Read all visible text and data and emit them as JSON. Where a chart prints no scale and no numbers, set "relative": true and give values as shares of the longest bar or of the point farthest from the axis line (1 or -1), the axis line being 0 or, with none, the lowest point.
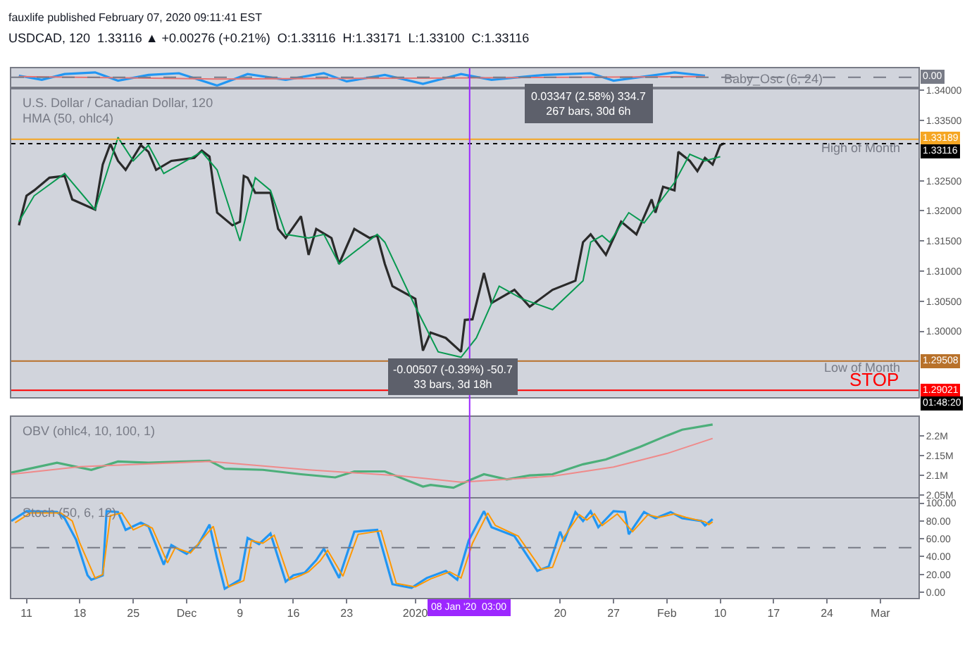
{
  "chart_data": [
    {
      "type": "line",
      "title": "Baby_Osc (6, 24)",
      "relative": true,
      "tick_labels": false,
      "xlim": [
        "2019-11-09",
        "2020-03-07"
      ],
      "annotations": [
        "fauxlife published February 07, 2020 09:11:41 EST",
        "USDCAD, 120  1.33116 ▲ +0.00276 (+0.21%)  O:1.33116  H:1.33171  L:1.33100  C:1.33116"
      ],
      "ref_lines": [
        {
          "axis": "y",
          "value": 0,
          "label": "0.00",
          "color": "#787b86",
          "line_style": "dashed"
        }
      ],
      "series": [
        {
          "color": "#2196f3",
          "x": [
            "2019-11-10",
            "2019-11-13",
            "2019-11-16",
            "2019-11-20",
            "2019-11-23",
            "2019-11-27",
            "2019-12-01",
            "2019-12-06",
            "2019-12-10",
            "2019-12-15",
            "2019-12-20",
            "2019-12-23",
            "2019-12-28",
            "2020-01-02",
            "2020-01-07",
            "2020-01-11",
            "2020-01-18",
            "2020-01-24",
            "2020-01-27",
            "2020-02-04",
            "2020-02-08"
          ],
          "values": [
            0.2,
            -0.3,
            0.4,
            0.6,
            -0.4,
            0.3,
            0.5,
            -1,
            0.4,
            -0.3,
            0.5,
            -0.5,
            0.3,
            -0.8,
            0.4,
            -0.3,
            0.3,
            0.5,
            -0.4,
            0.6,
            0.2
          ]
        },
        {
          "color": "#e57373",
          "x": [
            "2019-11-10",
            "2019-12-06",
            "2020-01-02",
            "2020-02-08"
          ],
          "values": [
            0.1,
            -0.2,
            -0.1,
            0.1
          ]
        }
      ]
    },
    {
      "type": "line",
      "title": "U.S. Dollar / Canadian Dollar, 120",
      "subtitle": "HMA (50, ohlc4)",
      "tick_labels": "y",
      "xlim": [
        "2019-11-09",
        "2020-03-07"
      ],
      "ylim": [
        1.2891,
        1.3402
      ],
      "yticks": [
        {
          "value": 1.3,
          "label": "1.30000"
        },
        {
          "value": 1.305,
          "label": "1.30500"
        },
        {
          "value": 1.31,
          "label": "1.31000"
        },
        {
          "value": 1.315,
          "label": "1.31500"
        },
        {
          "value": 1.32,
          "label": "1.32000"
        },
        {
          "value": 1.325,
          "label": "1.32500"
        },
        {
          "value": 1.335,
          "label": "1.33500"
        },
        {
          "value": 1.34,
          "label": "1.34000"
        }
      ],
      "ref_lines": [
        {
          "axis": "y",
          "value": 1.33189,
          "label": "1.33189",
          "color": "#f5a623"
        },
        {
          "axis": "y",
          "value": 1.33116,
          "label": "1.33116",
          "color": "#000000",
          "line_style": "dotted"
        },
        {
          "axis": "y",
          "value": 1.29508,
          "label": "1.29508",
          "color": "#b8712a"
        },
        {
          "axis": "y",
          "value": 1.29021,
          "label": "1.29021",
          "color": "#ff0000"
        },
        {
          "axis": "x",
          "value": "2020-01-08T03:00",
          "label": "08 Jan '20  03:00",
          "color": "#9c27ff"
        }
      ],
      "annotations": [
        {
          "text": "High of Month",
          "x": "2020-03-05",
          "y": 1.3305
        },
        {
          "text": "Low of Month",
          "x": "2020-03-05",
          "y": 1.294
        },
        {
          "text": "-0.00507 (-0.39%) -50.7\n33 bars, 3d 18h",
          "x": "2020-01-06",
          "y": 1.2893
        },
        "STOP",
        "0.03347 (2.58%) 334.7\n267 bars, 30d 6h",
        "01:48:20"
      ],
      "series": [
        {
          "color": "#2a2a2a",
          "x": [
            "2019-11-10",
            "2019-11-11",
            "2019-11-12",
            "2019-11-14",
            "2019-11-16",
            "2019-11-17",
            "2019-11-20",
            "2019-11-21",
            "2019-11-22",
            "2019-11-23",
            "2019-11-24",
            "2019-11-26",
            "2019-11-27",
            "2019-11-28",
            "2019-11-30",
            "2019-12-03",
            "2019-12-04",
            "2019-12-05",
            "2019-12-06",
            "2019-12-08",
            "2019-12-09",
            "2019-12-09T12:00",
            "2019-12-10",
            "2019-12-11",
            "2019-12-13",
            "2019-12-14",
            "2019-12-15",
            "2019-12-17",
            "2019-12-18",
            "2019-12-19",
            "2019-12-21",
            "2019-12-22",
            "2019-12-24",
            "2019-12-26",
            "2019-12-27",
            "2019-12-28",
            "2019-12-29",
            "2020-01-01",
            "2020-01-02",
            "2020-01-03",
            "2020-01-05",
            "2020-01-07",
            "2020-01-07T12:00",
            "2020-01-08T12:00",
            "2020-01-10",
            "2020-01-11",
            "2020-01-14",
            "2020-01-16",
            "2020-01-19",
            "2020-01-22",
            "2020-01-23",
            "2020-01-24",
            "2020-01-26",
            "2020-01-28",
            "2020-01-30",
            "2020-02-01",
            "2020-02-01T12:00",
            "2020-02-02T12:00",
            "2020-02-04",
            "2020-02-04T12:00",
            "2020-02-06",
            "2020-02-07",
            "2020-02-08",
            "2020-02-09",
            "2020-02-10",
            "2020-02-10T12:00"
          ],
          "values": [
            1.3176,
            1.3225,
            1.3234,
            1.3255,
            1.3258,
            1.3219,
            1.3202,
            1.3277,
            1.3311,
            1.3283,
            1.3268,
            1.3309,
            1.3298,
            1.3268,
            1.3283,
            1.3288,
            1.33,
            1.329,
            1.3197,
            1.3176,
            1.3182,
            1.3258,
            1.3255,
            1.323,
            1.323,
            1.317,
            1.3155,
            1.3191,
            1.3127,
            1.317,
            1.3155,
            1.3112,
            1.317,
            1.3155,
            1.3159,
            1.3112,
            1.3075,
            1.3054,
            1.2968,
            1.2998,
            1.2989,
            1.2966,
            1.3019,
            1.302,
            1.3097,
            1.3047,
            1.3069,
            1.3041,
            1.3069,
            1.3084,
            1.3148,
            1.3161,
            1.3127,
            1.3182,
            1.3161,
            1.3219,
            1.3197,
            1.324,
            1.3234,
            1.3298,
            1.3283,
            1.3266,
            1.3288,
            1.3277,
            1.3309,
            1.3312
          ]
        },
        {
          "color": "#089950",
          "x": [
            "2019-11-10",
            "2019-11-12",
            "2019-11-16",
            "2019-11-20",
            "2019-11-23",
            "2019-11-25",
            "2019-11-27",
            "2019-11-29",
            "2019-12-04",
            "2019-12-06",
            "2019-12-09",
            "2019-12-11",
            "2019-12-13",
            "2019-12-15",
            "2019-12-18",
            "2019-12-20",
            "2019-12-22",
            "2019-12-27",
            "2019-12-28",
            "2020-01-01",
            "2020-01-04",
            "2020-01-07",
            "2020-01-09",
            "2020-01-12",
            "2020-01-15",
            "2020-01-19",
            "2020-01-23",
            "2020-01-24",
            "2020-01-25T12:00",
            "2020-01-26T12:00",
            "2020-01-29",
            "2020-01-31",
            "2020-02-04",
            "2020-02-06",
            "2020-02-08",
            "2020-02-10"
          ],
          "values": [
            1.3182,
            1.3225,
            1.3262,
            1.3202,
            1.3322,
            1.3283,
            1.3309,
            1.3262,
            1.3298,
            1.3268,
            1.315,
            1.3255,
            1.3234,
            1.3161,
            1.3155,
            1.3161,
            1.3112,
            1.3161,
            1.3148,
            1.3041,
            1.2966,
            1.2957,
            1.2989,
            1.3075,
            1.3054,
            1.3036,
            1.3084,
            1.3148,
            1.3159,
            1.3148,
            1.3197,
            1.318,
            1.3247,
            1.3294,
            1.3283,
            1.329
          ]
        }
      ]
    },
    {
      "type": "line",
      "title": "OBV (ohlc4, 10, 100, 1)",
      "tick_labels": "y",
      "xlim": [
        "2019-11-09",
        "2020-03-07"
      ],
      "ylim": [
        2.045,
        2.248
      ],
      "yticks": [
        {
          "value": 2.05,
          "label": "2.05M"
        },
        {
          "value": 2.1,
          "label": "2.1M"
        },
        {
          "value": 2.15,
          "label": "2.15M"
        },
        {
          "value": 2.2,
          "label": "2.2M"
        }
      ],
      "series": [
        {
          "color": "#4caf7a",
          "x": [
            "2019-11-09",
            "2019-11-15",
            "2019-11-19T12:00",
            "2019-11-23",
            "2019-11-27",
            "2019-12-02",
            "2019-12-05",
            "2019-12-07",
            "2019-12-12",
            "2019-12-17",
            "2019-12-21T12:00",
            "2019-12-24",
            "2019-12-28",
            "2020-01-02",
            "2020-01-03",
            "2020-01-06",
            "2020-01-08",
            "2020-01-10",
            "2020-01-13",
            "2020-01-16",
            "2020-01-19",
            "2020-01-23",
            "2020-01-26",
            "2020-01-30T12:00",
            "2020-02-03",
            "2020-02-05",
            "2020-02-09"
          ],
          "values": [
            2.107,
            2.132,
            2.114,
            2.135,
            2.132,
            2.135,
            2.137,
            2.117,
            2.114,
            2.103,
            2.095,
            2.11,
            2.11,
            2.072,
            2.076,
            2.069,
            2.087,
            2.103,
            2.09,
            2.1,
            2.103,
            2.128,
            2.14,
            2.172,
            2.2,
            2.215,
            2.228
          ]
        },
        {
          "color": "#ef8a8a",
          "x": [
            "2019-11-09",
            "2019-11-18",
            "2019-12-05",
            "2019-12-18",
            "2019-12-30",
            "2020-01-07",
            "2020-01-19",
            "2020-01-27",
            "2020-02-03",
            "2020-02-09"
          ],
          "values": [
            2.103,
            2.122,
            2.135,
            2.114,
            2.099,
            2.083,
            2.098,
            2.121,
            2.155,
            2.193
          ]
        }
      ]
    },
    {
      "type": "line",
      "title": "Stoch (50, 6, 12)",
      "xlim": [
        "2019-11-09",
        "2020-03-07"
      ],
      "ylim": [
        -6,
        105
      ],
      "yticks": [
        {
          "value": 0,
          "label": "0.00"
        },
        {
          "value": 20,
          "label": "20.00"
        },
        {
          "value": 40,
          "label": "40.00"
        },
        {
          "value": 60,
          "label": "60.00"
        },
        {
          "value": 80,
          "label": "80.00"
        },
        {
          "value": 100,
          "label": "100.00"
        }
      ],
      "xticks": [
        {
          "value": "2019-11-11",
          "label": "11"
        },
        {
          "value": "2019-11-18",
          "label": "18"
        },
        {
          "value": "2019-11-25",
          "label": "25"
        },
        {
          "value": "2019-12-02",
          "label": "Dec"
        },
        {
          "value": "2019-12-09",
          "label": "9"
        },
        {
          "value": "2019-12-16",
          "label": "16"
        },
        {
          "value": "2019-12-23",
          "label": "23"
        },
        {
          "value": "2020-01-01",
          "label": "2020"
        },
        {
          "value": "2020-01-20",
          "label": "20"
        },
        {
          "value": "2020-01-27",
          "label": "27"
        },
        {
          "value": "2020-02-03",
          "label": "Feb"
        },
        {
          "value": "2020-02-10",
          "label": "10"
        },
        {
          "value": "2020-02-17",
          "label": "17"
        },
        {
          "value": "2020-02-24",
          "label": "24"
        },
        {
          "value": "2020-03-02",
          "label": "Mar"
        }
      ],
      "ref_lines": [
        {
          "axis": "y",
          "value": 50,
          "color": "#787b86",
          "line_style": "dashed"
        }
      ],
      "series": [
        {
          "color": "#2196f3",
          "x": [
            "2019-11-09",
            "2019-11-11",
            "2019-11-15",
            "2019-11-16",
            "2019-11-17T12:00",
            "2019-11-19",
            "2019-11-19T12:00",
            "2019-11-21",
            "2019-11-21T12:00",
            "2019-11-23",
            "2019-11-24",
            "2019-11-26",
            "2019-11-27",
            "2019-11-29",
            "2019-11-30",
            "2019-12-02",
            "2019-12-03T12:00",
            "2019-12-05",
            "2019-12-06",
            "2019-12-07",
            "2019-12-09",
            "2019-12-10",
            "2019-12-11T12:00",
            "2019-12-13",
            "2019-12-15",
            "2019-12-16",
            "2019-12-17T12:00",
            "2019-12-19",
            "2019-12-20",
            "2019-12-22",
            "2019-12-24",
            "2019-12-27",
            "2019-12-29",
            "2019-12-31T12:00",
            "2020-01-02T12:00",
            "2020-01-05",
            "2020-01-06T12:00",
            "2020-01-08",
            "2020-01-10",
            "2020-01-11",
            "2020-01-14",
            "2020-01-17",
            "2020-01-18T12:00",
            "2020-01-20",
            "2020-01-20T12:00",
            "2020-01-22",
            "2020-01-23",
            "2020-01-24",
            "2020-01-25",
            "2020-01-27",
            "2020-01-28T12:00",
            "2020-01-29",
            "2020-01-31",
            "2020-02-01T12:00",
            "2020-02-03T12:00",
            "2020-02-05",
            "2020-02-07T12:00",
            "2020-02-08",
            "2020-02-09"
          ],
          "values": [
            80,
            91,
            90,
            83,
            59,
            19,
            14,
            19,
            91,
            90,
            70,
            78,
            74,
            31,
            53,
            43,
            53,
            76,
            38,
            4,
            14,
            61,
            54,
            66,
            12,
            19,
            22,
            36,
            49,
            16,
            68,
            70,
            9,
            5,
            16,
            24,
            14,
            58,
            91,
            73,
            63,
            24,
            29,
            68,
            57,
            90,
            80,
            91,
            73,
            91,
            90,
            65,
            90,
            83,
            90,
            83,
            80,
            75,
            82
          ]
        },
        {
          "color": "#ff9800",
          "x": [
            "2019-11-09T12:00",
            "2019-11-11T12:00",
            "2019-11-15T12:00",
            "2019-11-17",
            "2019-11-18",
            "2019-11-20",
            "2019-11-21",
            "2019-11-22",
            "2019-11-23T12:00",
            "2019-11-25",
            "2019-11-26T12:00",
            "2019-11-27T12:00",
            "2019-11-29T12:00",
            "2019-11-30T12:00",
            "2019-12-02T12:00",
            "2019-12-05T12:00",
            "2019-12-06T12:00",
            "2019-12-07T12:00",
            "2019-12-09T12:00",
            "2019-12-10T12:00",
            "2019-12-12",
            "2019-12-13T12:00",
            "2019-12-15T12:00",
            "2019-12-17",
            "2019-12-18",
            "2019-12-19T12:00",
            "2019-12-20T12:00",
            "2019-12-22T12:00",
            "2019-12-24T12:00",
            "2019-12-27T12:00",
            "2019-12-29T12:00",
            "2020-01-01",
            "2020-01-03",
            "2020-01-05T12:00",
            "2020-01-07",
            "2020-01-08T12:00",
            "2020-01-10T12:00",
            "2020-01-11T12:00",
            "2020-01-14T12:00",
            "2020-01-17T12:00",
            "2020-01-19",
            "2020-01-20T12:00",
            "2020-01-22T12:00",
            "2020-01-23T12:00",
            "2020-01-24T12:00",
            "2020-01-25T12:00",
            "2020-01-27T12:00",
            "2020-01-29T12:00",
            "2020-01-31T12:00",
            "2020-02-02",
            "2020-02-04",
            "2020-02-05T12:00",
            "2020-02-08",
            "2020-02-08T12:00",
            "2020-02-09"
          ],
          "values": [
            78,
            89,
            89,
            80,
            55,
            16,
            20,
            86,
            89,
            70,
            76,
            72,
            33,
            50,
            44,
            74,
            40,
            6,
            13,
            58,
            55,
            64,
            14,
            19,
            23,
            35,
            47,
            18,
            65,
            69,
            10,
            6,
            15,
            23,
            16,
            55,
            89,
            75,
            63,
            26,
            28,
            62,
            87,
            81,
            88,
            75,
            88,
            68,
            87,
            84,
            88,
            84,
            79,
            76,
            79
          ]
        }
      ]
    }
  ]
}
